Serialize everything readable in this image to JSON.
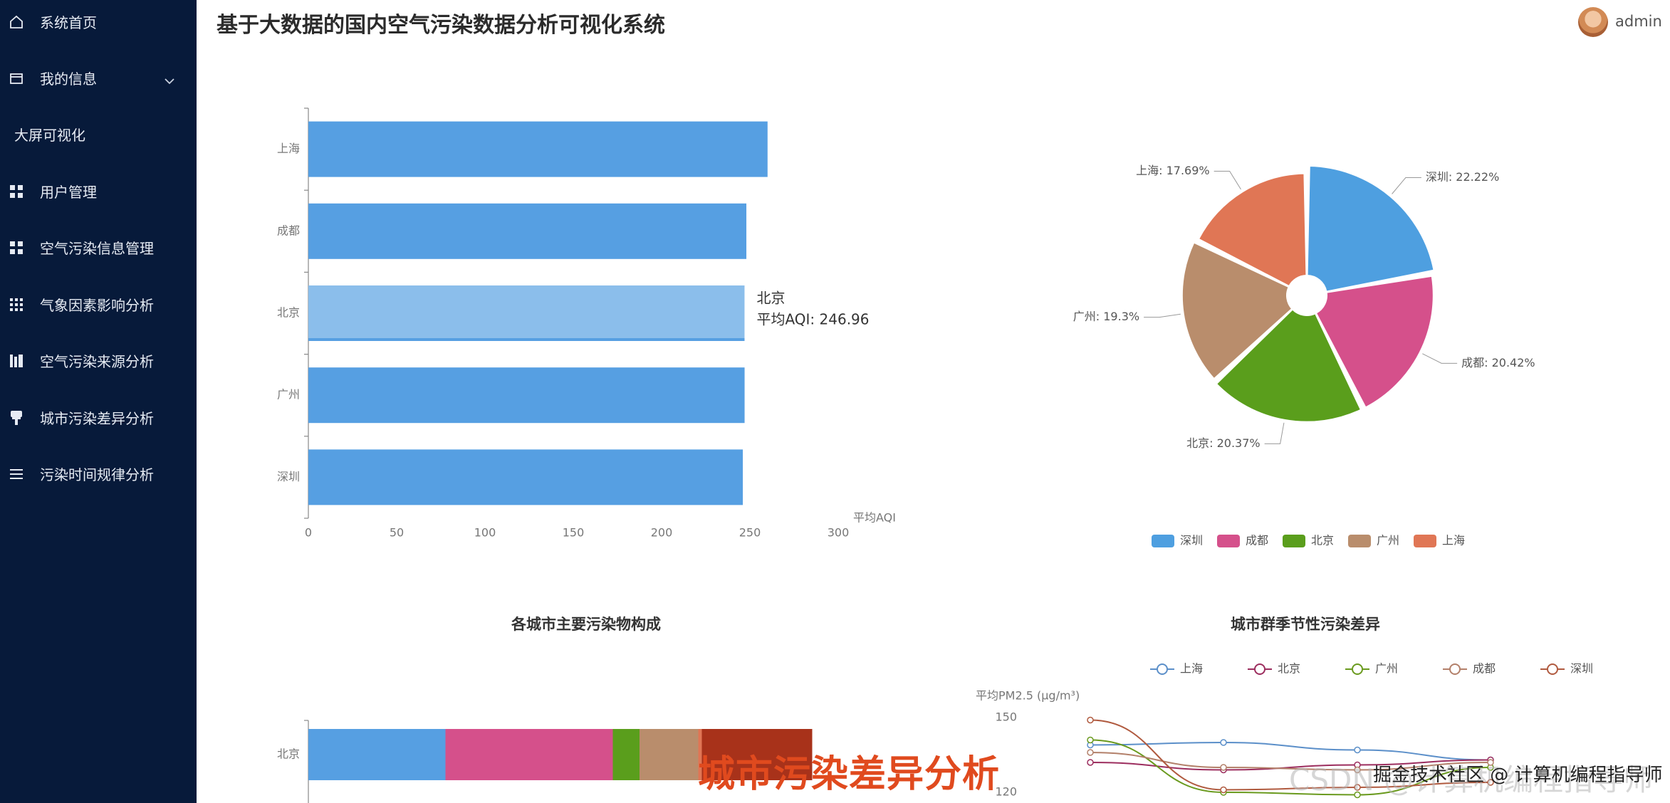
{
  "app": {
    "title": "基于大数据的国内空气污染数据分析可视化系统",
    "user": "admin"
  },
  "sidebar": {
    "items": [
      {
        "label": "系统首页",
        "icon": "home-icon"
      },
      {
        "label": "我的信息",
        "icon": "card-icon"
      },
      {
        "label": "大屏可视化",
        "icon": ""
      },
      {
        "label": "用户管理",
        "icon": "grid-icon"
      },
      {
        "label": "空气污染信息管理",
        "icon": "grid-icon"
      },
      {
        "label": "气象因素影响分析",
        "icon": "apps-icon"
      },
      {
        "label": "空气污染来源分析",
        "icon": "bars-icon"
      },
      {
        "label": "城市污染差异分析",
        "icon": "stamp-icon"
      },
      {
        "label": "污染时间规律分析",
        "icon": "list-icon"
      }
    ]
  },
  "chart_data": [
    {
      "type": "bar",
      "orientation": "horizontal",
      "categories": [
        "上海",
        "成都",
        "北京",
        "广州",
        "深圳"
      ],
      "values": [
        260,
        248,
        246.96,
        247,
        246
      ],
      "xlabel": "平均AQI",
      "xlim": [
        0,
        300
      ],
      "xticks": [
        "0",
        "50",
        "100",
        "150",
        "200",
        "250",
        "300"
      ],
      "color": "#569fe2",
      "highlight_color": "#8bbeeb",
      "tooltip": {
        "title": "北京",
        "text": "平均AQI: 246.96"
      }
    },
    {
      "type": "pie",
      "variant": "rose",
      "slices": [
        {
          "name": "深圳",
          "value": 22.22,
          "label": "深圳: 22.22%",
          "color": "#4e9fe0"
        },
        {
          "name": "成都",
          "value": 20.42,
          "label": "成都: 20.42%",
          "color": "#d5508b"
        },
        {
          "name": "北京",
          "value": 20.37,
          "label": "北京: 20.37%",
          "color": "#5a9e1c"
        },
        {
          "name": "广州",
          "value": 19.3,
          "label": "广州: 19.3%",
          "color": "#b98d6c"
        },
        {
          "name": "上海",
          "value": 17.69,
          "label": "上海: 17.69%",
          "color": "#e07655"
        }
      ],
      "legend": [
        "深圳",
        "成都",
        "北京",
        "广州",
        "上海"
      ],
      "legend_position": "bottom"
    },
    {
      "type": "bar",
      "stacked": true,
      "title": "各城市主要污染物构成",
      "categories": [
        "北京"
      ],
      "series": [
        {
          "values": [
            77
          ],
          "color": "#569fe2"
        },
        {
          "values": [
            94
          ],
          "color": "#d5508b"
        },
        {
          "values": [
            15
          ],
          "color": "#5a9e1c"
        },
        {
          "values": [
            33
          ],
          "color": "#b98d6c"
        },
        {
          "values": [
            2
          ],
          "color": "#e07655"
        },
        {
          "values": [
            62
          ],
          "color": "#a8321a"
        }
      ]
    },
    {
      "type": "line",
      "title": "城市群季节性污染差异",
      "ylabel": "平均PM2.5 (μg/m³)",
      "yticks": [
        "150",
        "120"
      ],
      "legend": [
        "上海",
        "北京",
        "广州",
        "成都",
        "深圳"
      ],
      "x": [
        1,
        2,
        3,
        4
      ],
      "series": [
        {
          "name": "上海",
          "values": [
            139,
            140,
            137,
            133
          ],
          "color": "#5b8fc9"
        },
        {
          "name": "北京",
          "values": [
            132,
            129,
            131,
            133
          ],
          "color": "#9c2d5e"
        },
        {
          "name": "广州",
          "values": [
            141,
            120,
            119,
            130
          ],
          "color": "#6a9a1e"
        },
        {
          "name": "成都",
          "values": [
            136,
            130,
            129,
            132
          ],
          "color": "#b3806a"
        },
        {
          "name": "深圳",
          "values": [
            149,
            121,
            122,
            124
          ],
          "color": "#b05a3f"
        }
      ]
    }
  ],
  "watermarks": {
    "overlay_text": "城市污染差异分析",
    "csdn": "CSDN @计算机编程指导师",
    "juejin": "掘金技术社区 @ 计算机编程指导师"
  }
}
